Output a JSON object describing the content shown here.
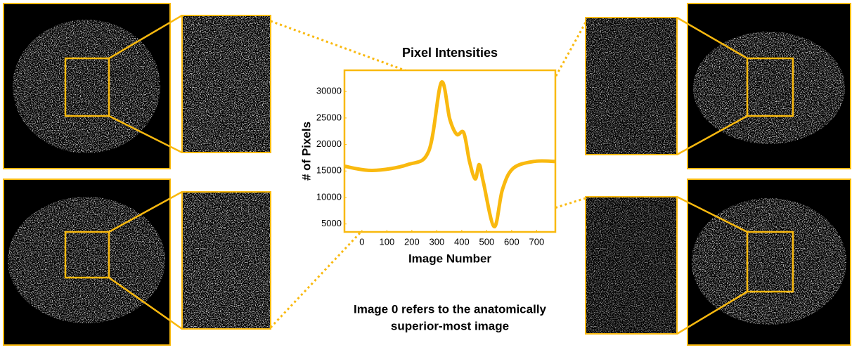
{
  "chart_data": {
    "type": "line",
    "title": "Pixel Intensities",
    "x_label": "Image Number",
    "y_label": "# of Pixels",
    "x": [
      -70,
      42,
      183,
      268,
      318,
      352,
      380,
      408,
      431,
      454,
      470,
      487,
      530,
      563,
      606,
      690,
      775
    ],
    "series": [
      {
        "color": "#f9b90f",
        "values": [
          15900,
          15100,
          16200,
          18800,
          31700,
          24800,
          21900,
          22200,
          16800,
          13500,
          16200,
          12800,
          4500,
          11500,
          15500,
          16800,
          16800
        ]
      }
    ],
    "xlim": [
      -70,
      775
    ],
    "ylim": [
      3500,
      34000
    ],
    "xticks": [
      0,
      100,
      200,
      300,
      400,
      500,
      600,
      700
    ],
    "yticks": [
      5000,
      10000,
      15000,
      20000,
      25000,
      30000
    ]
  },
  "caption": [
    "Image 0 refers to the anatomically",
    "superior-most image"
  ]
}
